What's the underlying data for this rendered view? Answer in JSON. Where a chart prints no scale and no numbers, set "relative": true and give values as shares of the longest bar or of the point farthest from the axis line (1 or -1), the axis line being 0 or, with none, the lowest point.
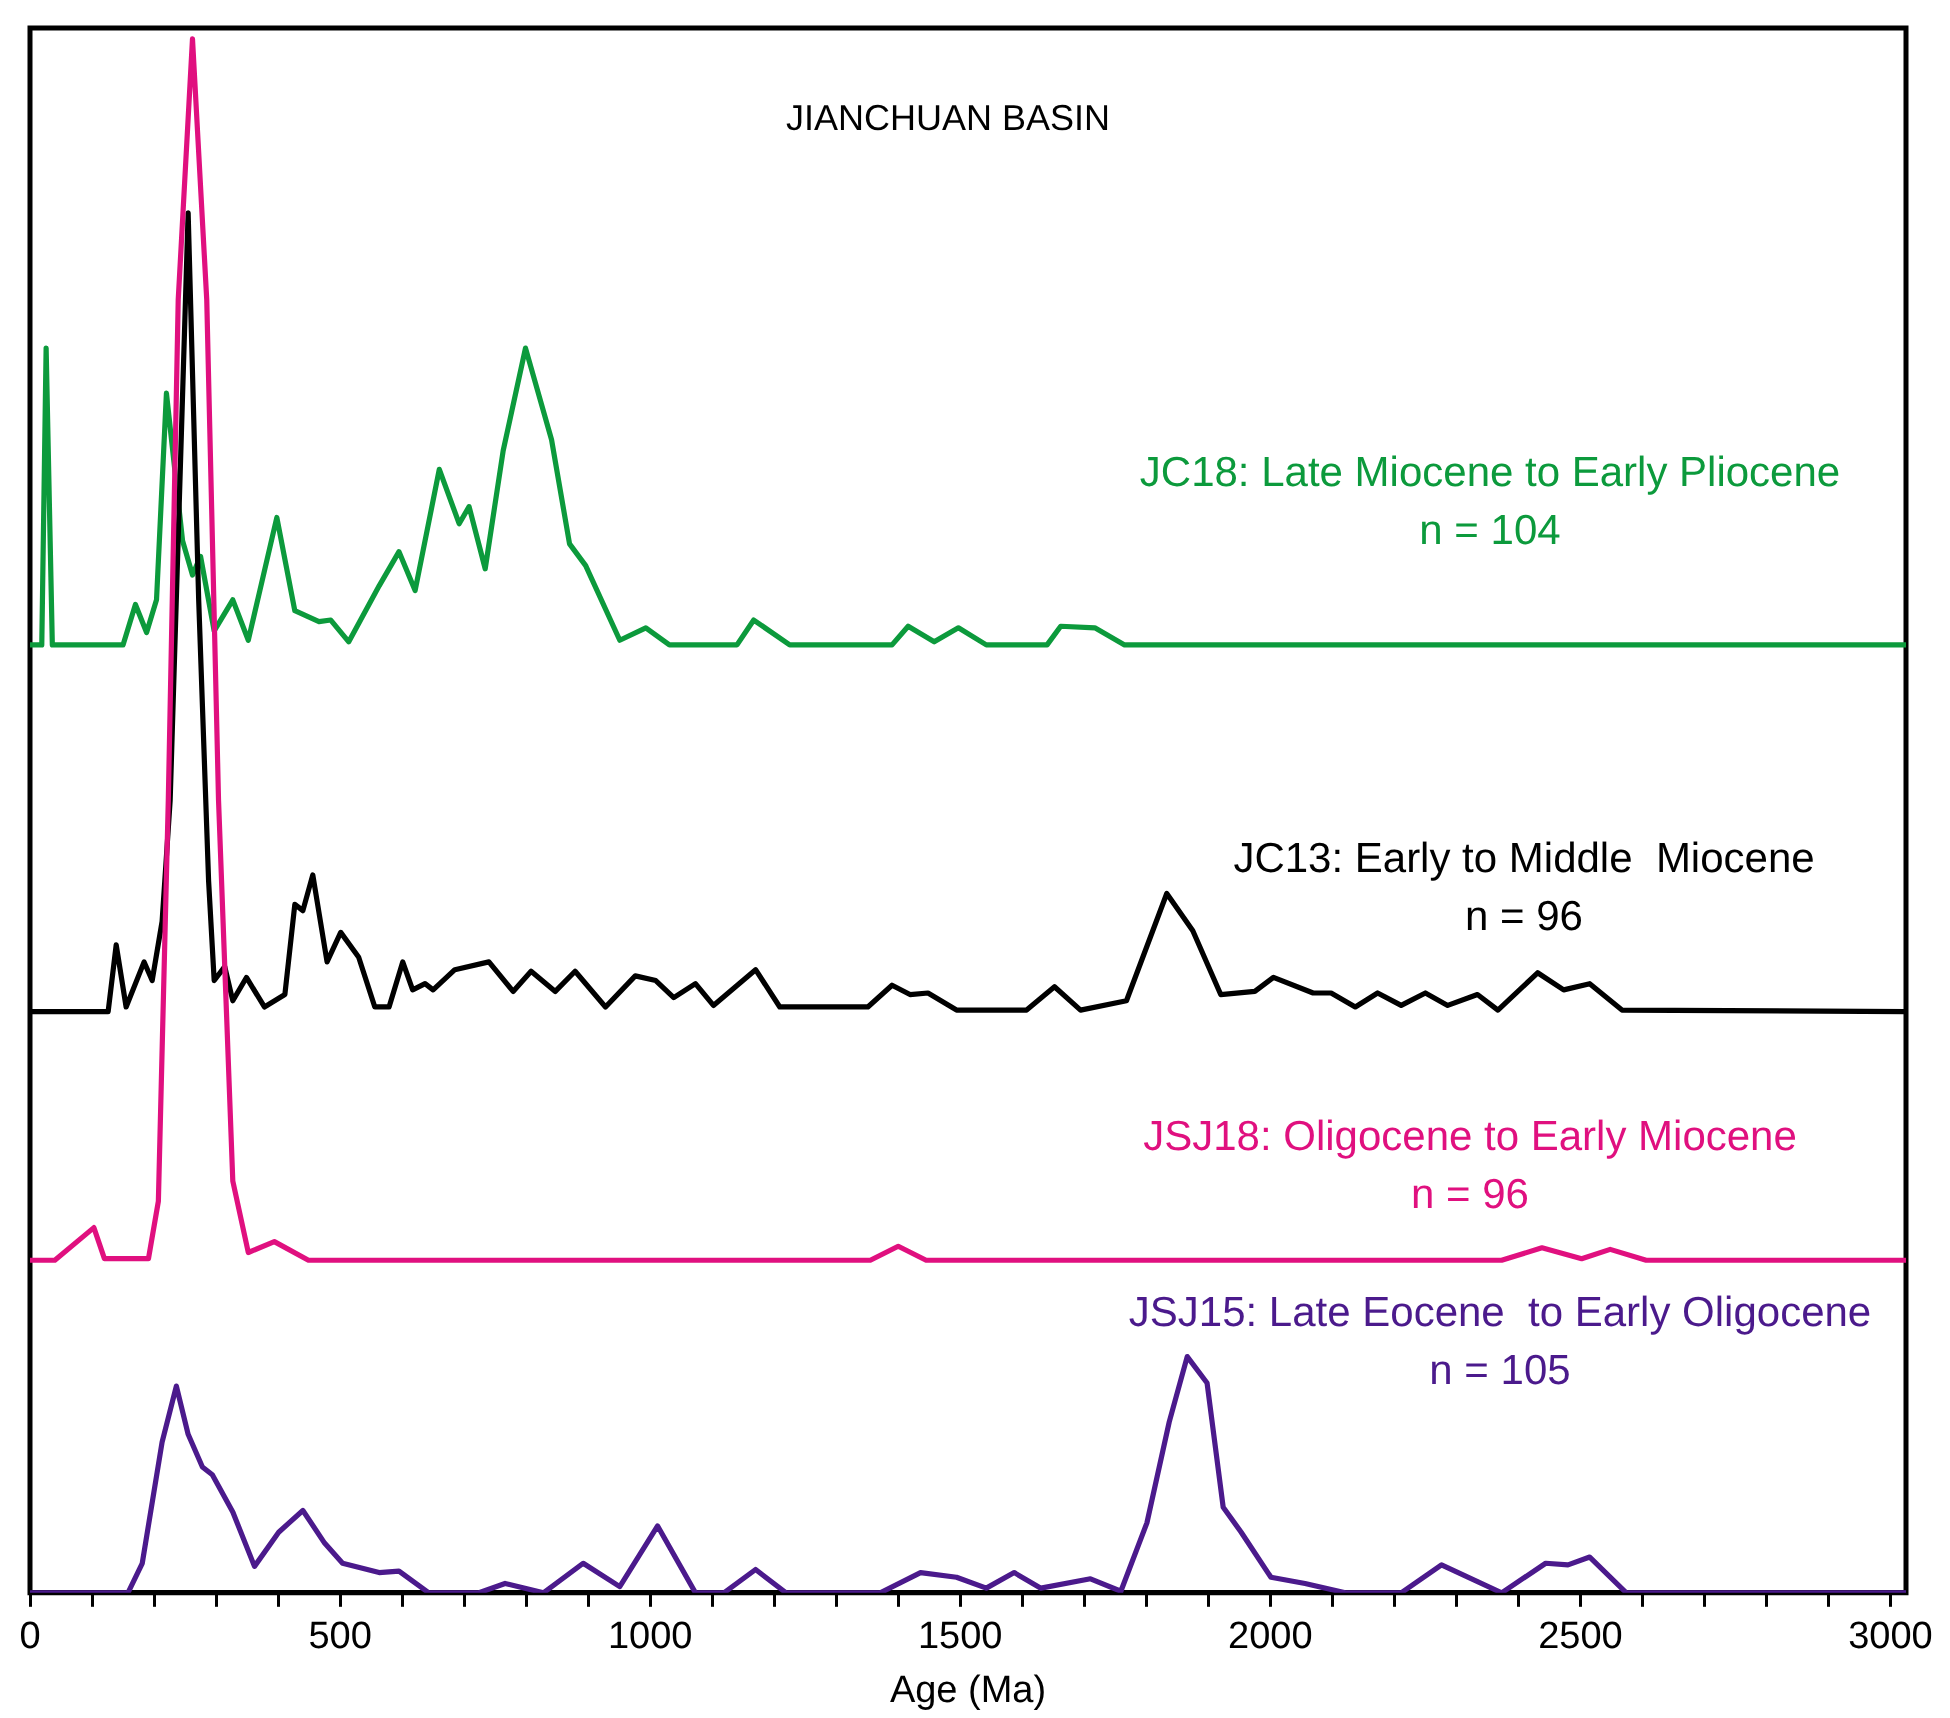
{
  "chart_data": {
    "type": "line",
    "title": "JIANCHUAN BASIN",
    "xlabel": "Age (Ma)",
    "relative": true,
    "marker": "none",
    "line_style": "solid",
    "grid": false,
    "legend": false,
    "xlim": [
      0,
      3025
    ],
    "xticks": [
      0,
      {
        "value": 100,
        "label": null
      },
      {
        "value": 200,
        "label": null
      },
      {
        "value": 300,
        "label": null
      },
      {
        "value": 400,
        "label": null
      },
      500,
      {
        "value": 600,
        "label": null
      },
      {
        "value": 700,
        "label": null
      },
      {
        "value": 800,
        "label": null
      },
      {
        "value": 900,
        "label": null
      },
      1000,
      {
        "value": 1100,
        "label": null
      },
      {
        "value": 1200,
        "label": null
      },
      {
        "value": 1300,
        "label": null
      },
      {
        "value": 1400,
        "label": null
      },
      1500,
      {
        "value": 1600,
        "label": null
      },
      {
        "value": 1700,
        "label": null
      },
      {
        "value": 1800,
        "label": null
      },
      {
        "value": 1900,
        "label": null
      },
      2000,
      {
        "value": 2100,
        "label": null
      },
      {
        "value": 2200,
        "label": null
      },
      {
        "value": 2300,
        "label": null
      },
      {
        "value": 2400,
        "label": null
      },
      2500,
      {
        "value": 2600,
        "label": null
      },
      {
        "value": 2700,
        "label": null
      },
      {
        "value": 2800,
        "label": null
      },
      {
        "value": 2900,
        "label": null
      },
      3000
    ],
    "annotations": [
      "n = 104",
      "n = 96",
      "n = 96",
      "n = 105"
    ],
    "series": [
      {
        "name": "JC18: Late Miocene to Early Pliocene",
        "color": "#0c9a3c",
        "x": [
          0,
          19,
          26,
          36,
          150,
          170,
          188,
          204,
          220,
          246,
          262,
          275,
          297,
          327,
          352,
          398,
          427,
          466,
          485,
          514,
          563,
          595,
          621,
          660,
          692,
          708,
          734,
          763,
          799,
          841,
          870,
          896,
          951,
          993,
          1031,
          1140,
          1167,
          1225,
          1390,
          1416,
          1458,
          1497,
          1542,
          1640,
          1662,
          1717,
          1765,
          3025
        ],
        "values": [
          0.61,
          0.61,
          0.801,
          0.61,
          0.61,
          0.636,
          0.618,
          0.639,
          0.772,
          0.677,
          0.655,
          0.667,
          0.619,
          0.639,
          0.613,
          0.692,
          0.632,
          0.625,
          0.626,
          0.612,
          0.648,
          0.67,
          0.645,
          0.723,
          0.688,
          0.699,
          0.659,
          0.735,
          0.801,
          0.742,
          0.675,
          0.661,
          0.613,
          0.621,
          0.61,
          0.61,
          0.626,
          0.61,
          0.61,
          0.622,
          0.612,
          0.621,
          0.61,
          0.61,
          0.622,
          0.621,
          0.61,
          0.61
        ]
      },
      {
        "name": "JC13: Early to Middle  Miocene",
        "color": "#000000",
        "x": [
          0,
          126,
          139,
          155,
          184,
          197,
          213,
          226,
          255,
          272,
          288,
          297,
          314,
          327,
          349,
          378,
          411,
          427,
          440,
          456,
          479,
          501,
          530,
          556,
          579,
          601,
          617,
          637,
          650,
          685,
          740,
          779,
          808,
          847,
          879,
          928,
          976,
          1009,
          1038,
          1073,
          1102,
          1170,
          1209,
          1351,
          1390,
          1419,
          1448,
          1494,
          1607,
          1652,
          1694,
          1768,
          1833,
          1875,
          1920,
          1975,
          2005,
          2069,
          2098,
          2137,
          2173,
          2211,
          2250,
          2286,
          2334,
          2367,
          2431,
          2473,
          2515,
          2567,
          3025
        ],
        "values": [
          0.374,
          0.374,
          0.417,
          0.377,
          0.406,
          0.394,
          0.432,
          0.51,
          0.888,
          0.639,
          0.458,
          0.394,
          0.403,
          0.381,
          0.396,
          0.377,
          0.385,
          0.443,
          0.439,
          0.462,
          0.406,
          0.425,
          0.409,
          0.377,
          0.377,
          0.406,
          0.388,
          0.392,
          0.388,
          0.401,
          0.406,
          0.387,
          0.4,
          0.387,
          0.4,
          0.377,
          0.397,
          0.394,
          0.383,
          0.392,
          0.378,
          0.401,
          0.377,
          0.377,
          0.391,
          0.385,
          0.386,
          0.375,
          0.375,
          0.39,
          0.375,
          0.381,
          0.45,
          0.426,
          0.385,
          0.387,
          0.396,
          0.386,
          0.386,
          0.377,
          0.386,
          0.378,
          0.386,
          0.378,
          0.385,
          0.375,
          0.399,
          0.388,
          0.392,
          0.375,
          0.374
        ]
      },
      {
        "name": "JSJ18: Oligocene to Early Miocene",
        "color": "#e0107f",
        "x": [
          0,
          40,
          103,
          120,
          191,
          207,
          223,
          239,
          262,
          285,
          304,
          327,
          352,
          394,
          449,
          1355,
          1400,
          1445,
          2373,
          2438,
          2502,
          2548,
          2606,
          3025
        ],
        "values": [
          0.214,
          0.214,
          0.235,
          0.215,
          0.215,
          0.252,
          0.51,
          0.832,
          1,
          0.832,
          0.51,
          0.265,
          0.219,
          0.226,
          0.214,
          0.214,
          0.223,
          0.214,
          0.214,
          0.222,
          0.215,
          0.221,
          0.214,
          0.214
        ]
      },
      {
        "name": "JSJ15: Late Eocene  to Early Oligocene",
        "color": "#4b1a8c",
        "x": [
          0,
          158,
          181,
          213,
          236,
          255,
          278,
          294,
          327,
          362,
          401,
          440,
          475,
          504,
          563,
          595,
          643,
          724,
          766,
          828,
          892,
          951,
          1012,
          1073,
          1119,
          1170,
          1219,
          1371,
          1436,
          1494,
          1542,
          1587,
          1630,
          1710,
          1759,
          1801,
          1837,
          1866,
          1898,
          1924,
          1953,
          2001,
          2056,
          2121,
          2211,
          2276,
          2373,
          2444,
          2480,
          2515,
          2574,
          3025
        ],
        "values": [
          0,
          0,
          0.019,
          0.097,
          0.133,
          0.102,
          0.081,
          0.076,
          0.052,
          0.017,
          0.039,
          0.053,
          0.032,
          0.019,
          0.013,
          0.014,
          0,
          0,
          0.006,
          0,
          0.019,
          0.004,
          0.043,
          0,
          0,
          0.015,
          0,
          0,
          0.013,
          0.01,
          0.003,
          0.013,
          0.003,
          0.009,
          0.001,
          0.045,
          0.11,
          0.152,
          0.135,
          0.055,
          0.039,
          0.01,
          0.006,
          0,
          0,
          0.018,
          0,
          0.019,
          0.018,
          0.023,
          0,
          0
        ]
      }
    ]
  }
}
